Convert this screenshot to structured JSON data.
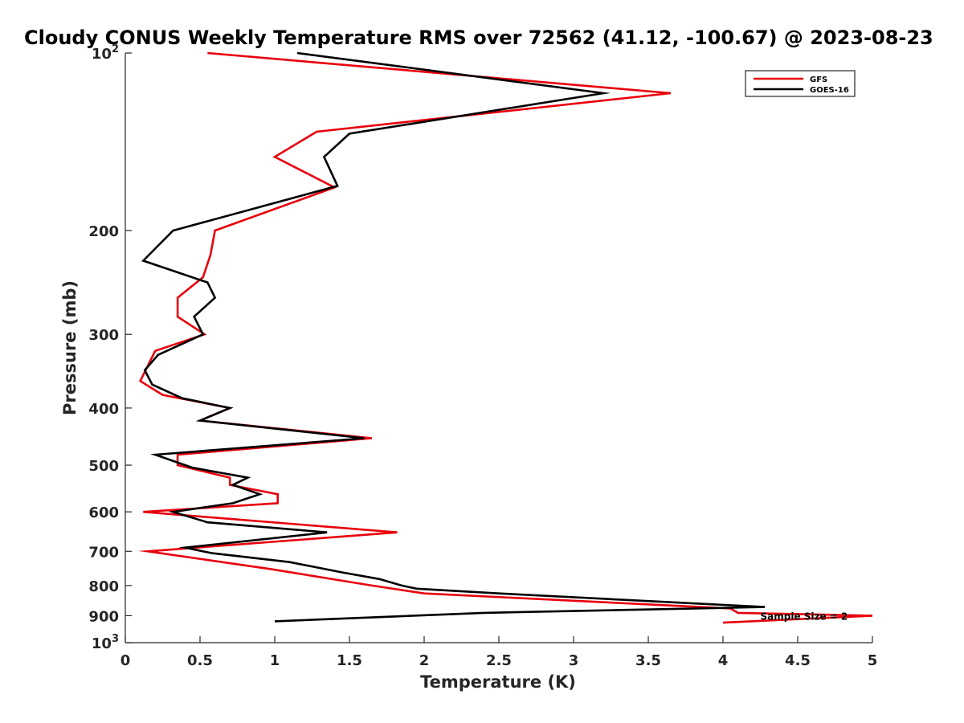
{
  "chart_data": {
    "type": "line",
    "title": "Cloudy CONUS Weekly Temperature RMS over 72562 (41.12, -100.67) @ 2023-08-23",
    "xlabel": "Temperature (K)",
    "ylabel": "Pressure (mb)",
    "xlim": [
      0,
      5
    ],
    "ylim": [
      100,
      1000
    ],
    "y_scale": "log",
    "y_reversed": true,
    "grid": false,
    "legend_position": "top-right",
    "x_ticks": [
      {
        "value": 0,
        "label": "0"
      },
      {
        "value": 0.5,
        "label": "0.5"
      },
      {
        "value": 1,
        "label": "1"
      },
      {
        "value": 1.5,
        "label": "1.5"
      },
      {
        "value": 2,
        "label": "2"
      },
      {
        "value": 2.5,
        "label": "2.5"
      },
      {
        "value": 3,
        "label": "3"
      },
      {
        "value": 3.5,
        "label": "3.5"
      },
      {
        "value": 4,
        "label": "4"
      },
      {
        "value": 4.5,
        "label": "4.5"
      },
      {
        "value": 5,
        "label": "5"
      }
    ],
    "y_ticks": [
      {
        "value": 100,
        "label": "10",
        "exp": "2"
      },
      {
        "value": 200,
        "label": "200"
      },
      {
        "value": 300,
        "label": "300"
      },
      {
        "value": 400,
        "label": "400"
      },
      {
        "value": 500,
        "label": "500"
      },
      {
        "value": 600,
        "label": "600"
      },
      {
        "value": 700,
        "label": "700"
      },
      {
        "value": 800,
        "label": "800"
      },
      {
        "value": 900,
        "label": "900"
      },
      {
        "value": 1000,
        "label": "10",
        "exp": "3"
      }
    ],
    "annotation": {
      "text": "Sample Size = 2",
      "x": 4.25,
      "y": 900
    },
    "series": [
      {
        "name": "GFS",
        "color": "#e8000b",
        "points": [
          {
            "x": 0.55,
            "y": 100
          },
          {
            "x": 3.65,
            "y": 117
          },
          {
            "x": 1.28,
            "y": 136
          },
          {
            "x": 1.0,
            "y": 150
          },
          {
            "x": 1.4,
            "y": 169
          },
          {
            "x": 0.6,
            "y": 200
          },
          {
            "x": 0.57,
            "y": 220
          },
          {
            "x": 0.52,
            "y": 240
          },
          {
            "x": 0.35,
            "y": 260
          },
          {
            "x": 0.35,
            "y": 280
          },
          {
            "x": 0.53,
            "y": 300
          },
          {
            "x": 0.2,
            "y": 320
          },
          {
            "x": 0.1,
            "y": 360
          },
          {
            "x": 0.25,
            "y": 380
          },
          {
            "x": 0.7,
            "y": 400
          },
          {
            "x": 0.5,
            "y": 420
          },
          {
            "x": 1.65,
            "y": 450
          },
          {
            "x": 0.35,
            "y": 480
          },
          {
            "x": 0.35,
            "y": 500
          },
          {
            "x": 0.7,
            "y": 525
          },
          {
            "x": 0.7,
            "y": 540
          },
          {
            "x": 1.02,
            "y": 560
          },
          {
            "x": 1.02,
            "y": 580
          },
          {
            "x": 0.12,
            "y": 600
          },
          {
            "x": 1.82,
            "y": 650
          },
          {
            "x": 0.15,
            "y": 700
          },
          {
            "x": 0.97,
            "y": 750
          },
          {
            "x": 1.65,
            "y": 800
          },
          {
            "x": 2.0,
            "y": 825
          },
          {
            "x": 4.05,
            "y": 875
          },
          {
            "x": 4.1,
            "y": 890
          },
          {
            "x": 5.0,
            "y": 900
          },
          {
            "x": 4.0,
            "y": 925
          }
        ]
      },
      {
        "name": "GOES-16",
        "color": "#000000",
        "points": [
          {
            "x": 1.15,
            "y": 100
          },
          {
            "x": 3.2,
            "y": 117
          },
          {
            "x": 1.5,
            "y": 137
          },
          {
            "x": 1.33,
            "y": 150
          },
          {
            "x": 1.42,
            "y": 168
          },
          {
            "x": 0.32,
            "y": 200
          },
          {
            "x": 0.12,
            "y": 225
          },
          {
            "x": 0.55,
            "y": 245
          },
          {
            "x": 0.6,
            "y": 260
          },
          {
            "x": 0.46,
            "y": 280
          },
          {
            "x": 0.52,
            "y": 300
          },
          {
            "x": 0.22,
            "y": 325
          },
          {
            "x": 0.13,
            "y": 345
          },
          {
            "x": 0.18,
            "y": 365
          },
          {
            "x": 0.38,
            "y": 385
          },
          {
            "x": 0.7,
            "y": 400
          },
          {
            "x": 0.5,
            "y": 420
          },
          {
            "x": 1.6,
            "y": 450
          },
          {
            "x": 0.2,
            "y": 480
          },
          {
            "x": 0.45,
            "y": 505
          },
          {
            "x": 0.82,
            "y": 525
          },
          {
            "x": 0.72,
            "y": 540
          },
          {
            "x": 0.9,
            "y": 560
          },
          {
            "x": 0.72,
            "y": 580
          },
          {
            "x": 0.32,
            "y": 600
          },
          {
            "x": 0.55,
            "y": 625
          },
          {
            "x": 1.35,
            "y": 650
          },
          {
            "x": 0.4,
            "y": 690
          },
          {
            "x": 0.58,
            "y": 705
          },
          {
            "x": 1.1,
            "y": 730
          },
          {
            "x": 1.45,
            "y": 760
          },
          {
            "x": 1.7,
            "y": 780
          },
          {
            "x": 1.85,
            "y": 800
          },
          {
            "x": 1.95,
            "y": 810
          },
          {
            "x": 2.5,
            "y": 825
          },
          {
            "x": 4.28,
            "y": 870
          },
          {
            "x": 2.4,
            "y": 890
          },
          {
            "x": 1.0,
            "y": 920
          }
        ]
      }
    ]
  }
}
